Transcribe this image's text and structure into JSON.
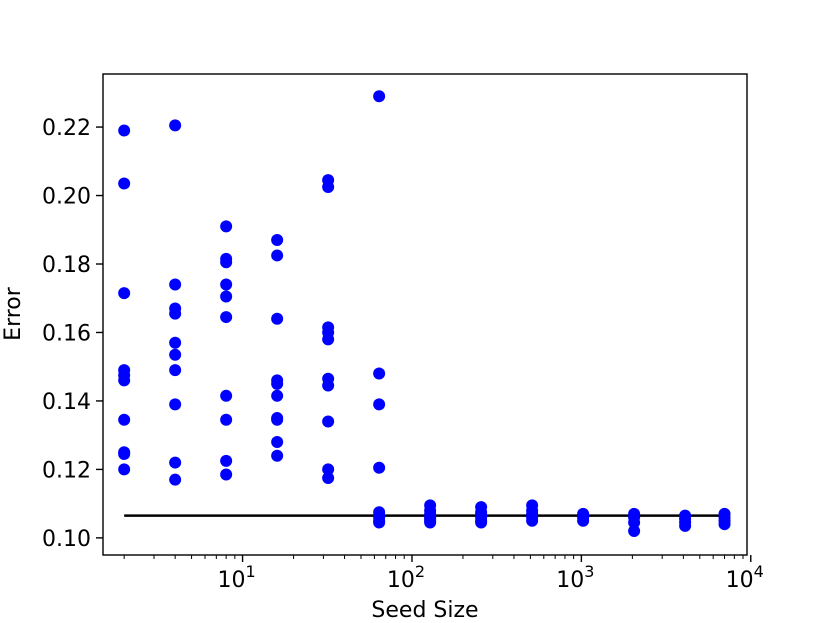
{
  "chart_data": {
    "type": "scatter",
    "title": "",
    "xlabel": "Seed Size",
    "ylabel": "Error",
    "x_scale": "log",
    "xlim": [
      1.5,
      9500
    ],
    "ylim": [
      0.095,
      0.2355
    ],
    "x_ticks": [
      {
        "value": 10,
        "label": "10",
        "exp": "1"
      },
      {
        "value": 100,
        "label": "10",
        "exp": "2"
      },
      {
        "value": 1000,
        "label": "10",
        "exp": "3"
      },
      {
        "value": 10000,
        "label": "10",
        "exp": "4"
      }
    ],
    "y_ticks": [
      {
        "value": 0.1,
        "label": "0.10"
      },
      {
        "value": 0.12,
        "label": "0.12"
      },
      {
        "value": 0.14,
        "label": "0.14"
      },
      {
        "value": 0.16,
        "label": "0.16"
      },
      {
        "value": 0.18,
        "label": "0.18"
      },
      {
        "value": 0.2,
        "label": "0.20"
      },
      {
        "value": 0.22,
        "label": "0.22"
      }
    ],
    "grid": false,
    "marker_color": "#0000ff",
    "baseline": {
      "y": 0.1065,
      "x_from": 2,
      "x_to": 7000,
      "color": "#000000"
    },
    "points": [
      {
        "x": 2,
        "y": 0.219
      },
      {
        "x": 2,
        "y": 0.2035
      },
      {
        "x": 2,
        "y": 0.1715
      },
      {
        "x": 2,
        "y": 0.149
      },
      {
        "x": 2,
        "y": 0.1475
      },
      {
        "x": 2,
        "y": 0.146
      },
      {
        "x": 2,
        "y": 0.1345
      },
      {
        "x": 2,
        "y": 0.125
      },
      {
        "x": 2,
        "y": 0.1245
      },
      {
        "x": 2,
        "y": 0.12
      },
      {
        "x": 4,
        "y": 0.2205
      },
      {
        "x": 4,
        "y": 0.174
      },
      {
        "x": 4,
        "y": 0.167
      },
      {
        "x": 4,
        "y": 0.1655
      },
      {
        "x": 4,
        "y": 0.157
      },
      {
        "x": 4,
        "y": 0.1535
      },
      {
        "x": 4,
        "y": 0.149
      },
      {
        "x": 4,
        "y": 0.139
      },
      {
        "x": 4,
        "y": 0.122
      },
      {
        "x": 4,
        "y": 0.117
      },
      {
        "x": 8,
        "y": 0.191
      },
      {
        "x": 8,
        "y": 0.1815
      },
      {
        "x": 8,
        "y": 0.1805
      },
      {
        "x": 8,
        "y": 0.174
      },
      {
        "x": 8,
        "y": 0.1705
      },
      {
        "x": 8,
        "y": 0.1645
      },
      {
        "x": 8,
        "y": 0.1415
      },
      {
        "x": 8,
        "y": 0.1345
      },
      {
        "x": 8,
        "y": 0.1225
      },
      {
        "x": 8,
        "y": 0.1185
      },
      {
        "x": 16,
        "y": 0.187
      },
      {
        "x": 16,
        "y": 0.1825
      },
      {
        "x": 16,
        "y": 0.164
      },
      {
        "x": 16,
        "y": 0.146
      },
      {
        "x": 16,
        "y": 0.145
      },
      {
        "x": 16,
        "y": 0.1415
      },
      {
        "x": 16,
        "y": 0.135
      },
      {
        "x": 16,
        "y": 0.1345
      },
      {
        "x": 16,
        "y": 0.128
      },
      {
        "x": 16,
        "y": 0.124
      },
      {
        "x": 32,
        "y": 0.2045
      },
      {
        "x": 32,
        "y": 0.2025
      },
      {
        "x": 32,
        "y": 0.1615
      },
      {
        "x": 32,
        "y": 0.16
      },
      {
        "x": 32,
        "y": 0.158
      },
      {
        "x": 32,
        "y": 0.1465
      },
      {
        "x": 32,
        "y": 0.1445
      },
      {
        "x": 32,
        "y": 0.134
      },
      {
        "x": 32,
        "y": 0.12
      },
      {
        "x": 32,
        "y": 0.1175
      },
      {
        "x": 64,
        "y": 0.229
      },
      {
        "x": 64,
        "y": 0.148
      },
      {
        "x": 64,
        "y": 0.139
      },
      {
        "x": 64,
        "y": 0.1205
      },
      {
        "x": 64,
        "y": 0.1075
      },
      {
        "x": 64,
        "y": 0.1065
      },
      {
        "x": 64,
        "y": 0.106
      },
      {
        "x": 64,
        "y": 0.105
      },
      {
        "x": 64,
        "y": 0.1045
      },
      {
        "x": 128,
        "y": 0.1095
      },
      {
        "x": 128,
        "y": 0.108
      },
      {
        "x": 128,
        "y": 0.107
      },
      {
        "x": 128,
        "y": 0.106
      },
      {
        "x": 128,
        "y": 0.1055
      },
      {
        "x": 128,
        "y": 0.105
      },
      {
        "x": 128,
        "y": 0.1045
      },
      {
        "x": 256,
        "y": 0.109
      },
      {
        "x": 256,
        "y": 0.1075
      },
      {
        "x": 256,
        "y": 0.107
      },
      {
        "x": 256,
        "y": 0.106
      },
      {
        "x": 256,
        "y": 0.105
      },
      {
        "x": 256,
        "y": 0.1045
      },
      {
        "x": 512,
        "y": 0.1095
      },
      {
        "x": 512,
        "y": 0.108
      },
      {
        "x": 512,
        "y": 0.107
      },
      {
        "x": 512,
        "y": 0.106
      },
      {
        "x": 512,
        "y": 0.105
      },
      {
        "x": 1024,
        "y": 0.107
      },
      {
        "x": 1024,
        "y": 0.106
      },
      {
        "x": 1024,
        "y": 0.105
      },
      {
        "x": 2048,
        "y": 0.107
      },
      {
        "x": 2048,
        "y": 0.106
      },
      {
        "x": 2048,
        "y": 0.1045
      },
      {
        "x": 2048,
        "y": 0.102
      },
      {
        "x": 4096,
        "y": 0.1065
      },
      {
        "x": 4096,
        "y": 0.1055
      },
      {
        "x": 4096,
        "y": 0.1045
      },
      {
        "x": 4096,
        "y": 0.1035
      },
      {
        "x": 7000,
        "y": 0.107
      },
      {
        "x": 7000,
        "y": 0.106
      },
      {
        "x": 7000,
        "y": 0.105
      },
      {
        "x": 7000,
        "y": 0.104
      }
    ]
  }
}
